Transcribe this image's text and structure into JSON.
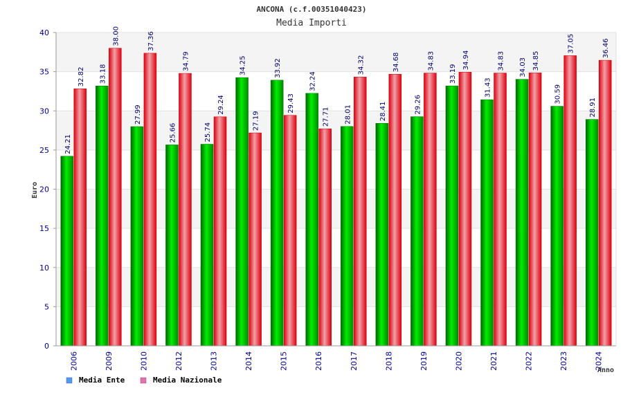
{
  "chart_data": {
    "type": "bar",
    "title": "ANCONA (c.f.00351040423)",
    "subtitle": "Media Importi",
    "ylabel": "Euro",
    "xlabel": "Anno",
    "ylim": [
      0,
      40
    ],
    "yticks": [
      0,
      5,
      10,
      15,
      20,
      25,
      30,
      35,
      40
    ],
    "categories": [
      "2006",
      "2009",
      "2010",
      "2012",
      "2013",
      "2014",
      "2015",
      "2016",
      "2017",
      "2018",
      "2019",
      "2020",
      "2021",
      "2022",
      "2023",
      "2024"
    ],
    "series": [
      {
        "name": "Media Ente",
        "color": "#00cc00",
        "values": [
          24.21,
          33.18,
          27.99,
          25.66,
          25.74,
          34.25,
          33.92,
          32.24,
          28.01,
          28.41,
          29.26,
          33.19,
          31.43,
          34.03,
          30.59,
          28.91
        ]
      },
      {
        "name": "Media Nazionale",
        "color": "#ee2233",
        "values": [
          32.82,
          38.0,
          37.36,
          34.79,
          29.24,
          27.19,
          29.43,
          27.71,
          34.32,
          34.68,
          34.83,
          34.94,
          34.83,
          34.85,
          37.05,
          36.46
        ]
      }
    ],
    "value_labels": [
      [
        "24.21",
        "33.18",
        "27.99",
        "25.66",
        "25.74",
        "34.25",
        "33.92",
        "32.24",
        "28.01",
        "28.41",
        "29.26",
        "33.19",
        "31.43",
        "34.03",
        "30.59",
        "28.91"
      ],
      [
        "32.82",
        "38.00",
        "37.36",
        "34.79",
        "29.24",
        "27.19",
        "29.43",
        "27.71",
        "34.32",
        "34.68",
        "34.83",
        "34.94",
        "34.83",
        "34.85",
        "37.05",
        "36.46"
      ]
    ],
    "legend": {
      "placement": "bottom-left",
      "items": [
        {
          "label": "Media Ente",
          "swatch_color": "#5599ee"
        },
        {
          "label": "Media Nazionale",
          "swatch_color": "#dd77aa"
        }
      ]
    },
    "grid": true,
    "plot_background": "#f4f4f4",
    "axis_color": "#999999"
  }
}
